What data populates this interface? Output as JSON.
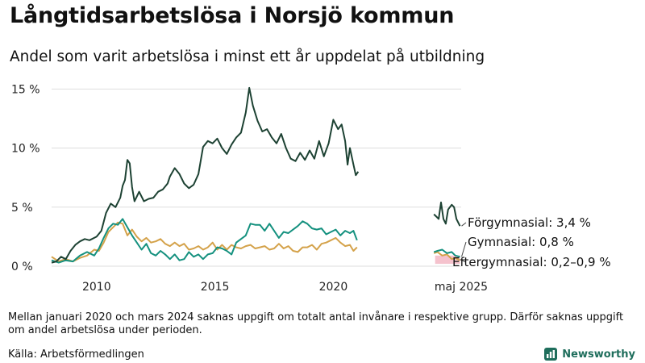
{
  "title": "Långtidsarbetslösa i Norsjö kommun",
  "subtitle": "Andel som varit arbetslösa i minst ett år uppdelat på utbildning",
  "footnote": "Mellan januari 2020 och mars 2024 saknas uppgift om totalt antal invånare i respektive grupp. Därför saknas uppgift om andel arbetslösa under perioden.",
  "source": "Källa: Arbetsförmedlingen",
  "brand": "Newsworthy",
  "colors": {
    "forgymnasial": "#1d4233",
    "gymnasial": "#15917f",
    "eftergymnasial": "#d4a24a",
    "eftergymnasial_band": "#f2b3c0"
  },
  "chart_data": {
    "type": "line",
    "y_ticks": [
      0,
      5,
      10,
      15
    ],
    "y_tick_labels": [
      "0 %",
      "5 %",
      "10 %",
      "15 %"
    ],
    "ylim": [
      0,
      15.5
    ],
    "x_tick_labels": [
      "2010",
      "2015",
      "2020",
      "maj 2025"
    ],
    "x_tick_positions": [
      2010,
      2015,
      2020,
      2025.4
    ],
    "xlim": [
      2008.1,
      2025.4
    ],
    "grid": true,
    "end_labels": [
      "Förgymnasial: 3,4 %",
      "Gymnasial: 0,8 %",
      "Eftergymnasial: 0,2–0,9 %"
    ],
    "series": [
      {
        "name": "Förgymnasial",
        "segments": [
          [
            [
              2008.1,
              0.3
            ],
            [
              2008.3,
              0.4
            ],
            [
              2008.5,
              0.8
            ],
            [
              2008.7,
              0.6
            ],
            [
              2008.9,
              1.3
            ],
            [
              2009.1,
              1.8
            ],
            [
              2009.3,
              2.1
            ],
            [
              2009.5,
              2.3
            ],
            [
              2009.7,
              2.2
            ],
            [
              2010.0,
              2.5
            ],
            [
              2010.2,
              3.0
            ],
            [
              2010.4,
              4.5
            ],
            [
              2010.6,
              5.3
            ],
            [
              2010.8,
              5.0
            ],
            [
              2011.0,
              5.8
            ],
            [
              2011.1,
              6.8
            ],
            [
              2011.2,
              7.3
            ],
            [
              2011.3,
              9.0
            ],
            [
              2011.4,
              8.7
            ],
            [
              2011.5,
              6.7
            ],
            [
              2011.6,
              5.5
            ],
            [
              2011.8,
              6.3
            ],
            [
              2012.0,
              5.5
            ],
            [
              2012.2,
              5.7
            ],
            [
              2012.4,
              5.8
            ],
            [
              2012.6,
              6.3
            ],
            [
              2012.8,
              6.5
            ],
            [
              2013.0,
              7.0
            ],
            [
              2013.1,
              7.6
            ],
            [
              2013.3,
              8.3
            ],
            [
              2013.5,
              7.8
            ],
            [
              2013.7,
              7.0
            ],
            [
              2013.9,
              6.6
            ],
            [
              2014.1,
              6.9
            ],
            [
              2014.3,
              7.8
            ],
            [
              2014.5,
              10.1
            ],
            [
              2014.7,
              10.6
            ],
            [
              2014.9,
              10.4
            ],
            [
              2015.1,
              10.8
            ],
            [
              2015.3,
              10.0
            ],
            [
              2015.5,
              9.5
            ],
            [
              2015.7,
              10.3
            ],
            [
              2015.9,
              10.9
            ],
            [
              2016.1,
              11.3
            ],
            [
              2016.3,
              13.0
            ],
            [
              2016.45,
              15.1
            ],
            [
              2016.6,
              13.6
            ],
            [
              2016.8,
              12.3
            ],
            [
              2017.0,
              11.4
            ],
            [
              2017.2,
              11.6
            ],
            [
              2017.4,
              10.9
            ],
            [
              2017.6,
              10.4
            ],
            [
              2017.8,
              11.2
            ],
            [
              2018.0,
              10.0
            ],
            [
              2018.2,
              9.1
            ],
            [
              2018.4,
              8.9
            ],
            [
              2018.6,
              9.6
            ],
            [
              2018.8,
              9.0
            ],
            [
              2019.0,
              9.8
            ],
            [
              2019.2,
              9.1
            ],
            [
              2019.4,
              10.6
            ],
            [
              2019.6,
              9.3
            ],
            [
              2019.8,
              10.4
            ],
            [
              2020.0,
              12.4
            ],
            [
              2020.2,
              11.6
            ],
            [
              2020.35,
              12.0
            ],
            [
              2020.5,
              10.6
            ],
            [
              2020.6,
              8.6
            ],
            [
              2020.7,
              10.0
            ],
            [
              2020.85,
              8.6
            ],
            [
              2020.95,
              7.7
            ],
            [
              2021.05,
              8.0
            ]
          ],
          [
            [
              2024.25,
              4.4
            ],
            [
              2024.35,
              4.2
            ],
            [
              2024.45,
              4.0
            ],
            [
              2024.55,
              5.4
            ],
            [
              2024.65,
              4.0
            ],
            [
              2024.75,
              3.6
            ],
            [
              2024.85,
              4.8
            ],
            [
              2025.0,
              5.2
            ],
            [
              2025.1,
              5.0
            ],
            [
              2025.2,
              4.0
            ],
            [
              2025.35,
              3.4
            ]
          ]
        ]
      },
      {
        "name": "Gymnasial",
        "segments": [
          [
            [
              2008.1,
              0.5
            ],
            [
              2008.4,
              0.3
            ],
            [
              2008.7,
              0.5
            ],
            [
              2009.0,
              0.4
            ],
            [
              2009.3,
              0.9
            ],
            [
              2009.6,
              1.2
            ],
            [
              2009.9,
              0.9
            ],
            [
              2010.1,
              1.5
            ],
            [
              2010.3,
              2.4
            ],
            [
              2010.5,
              3.2
            ],
            [
              2010.7,
              3.6
            ],
            [
              2010.9,
              3.5
            ],
            [
              2011.1,
              4.0
            ],
            [
              2011.3,
              3.3
            ],
            [
              2011.5,
              2.6
            ],
            [
              2011.7,
              2.0
            ],
            [
              2011.9,
              1.4
            ],
            [
              2012.1,
              1.9
            ],
            [
              2012.3,
              1.1
            ],
            [
              2012.5,
              0.9
            ],
            [
              2012.7,
              1.3
            ],
            [
              2012.9,
              1.0
            ],
            [
              2013.1,
              0.6
            ],
            [
              2013.3,
              1.0
            ],
            [
              2013.5,
              0.5
            ],
            [
              2013.7,
              0.6
            ],
            [
              2013.9,
              1.2
            ],
            [
              2014.1,
              0.8
            ],
            [
              2014.3,
              1.0
            ],
            [
              2014.5,
              0.6
            ],
            [
              2014.7,
              1.0
            ],
            [
              2014.9,
              1.1
            ],
            [
              2015.1,
              1.6
            ],
            [
              2015.3,
              1.5
            ],
            [
              2015.5,
              1.3
            ],
            [
              2015.7,
              1.0
            ],
            [
              2015.9,
              2.0
            ],
            [
              2016.1,
              2.3
            ],
            [
              2016.3,
              2.6
            ],
            [
              2016.5,
              3.6
            ],
            [
              2016.7,
              3.5
            ],
            [
              2016.9,
              3.5
            ],
            [
              2017.1,
              3.0
            ],
            [
              2017.3,
              3.6
            ],
            [
              2017.5,
              3.0
            ],
            [
              2017.7,
              2.4
            ],
            [
              2017.9,
              2.9
            ],
            [
              2018.1,
              2.8
            ],
            [
              2018.3,
              3.1
            ],
            [
              2018.5,
              3.4
            ],
            [
              2018.7,
              3.8
            ],
            [
              2018.9,
              3.6
            ],
            [
              2019.1,
              3.2
            ],
            [
              2019.3,
              3.1
            ],
            [
              2019.5,
              3.2
            ],
            [
              2019.7,
              2.7
            ],
            [
              2019.9,
              2.9
            ],
            [
              2020.1,
              3.1
            ],
            [
              2020.3,
              2.6
            ],
            [
              2020.5,
              3.0
            ],
            [
              2020.7,
              2.8
            ],
            [
              2020.85,
              3.0
            ],
            [
              2021.0,
              2.2
            ]
          ],
          [
            [
              2024.25,
              1.2
            ],
            [
              2024.4,
              1.3
            ],
            [
              2024.6,
              1.4
            ],
            [
              2024.8,
              1.1
            ],
            [
              2025.0,
              1.2
            ],
            [
              2025.15,
              0.9
            ],
            [
              2025.35,
              0.8
            ]
          ]
        ]
      },
      {
        "name": "Eftergymnasial",
        "segments": [
          [
            [
              2008.1,
              0.8
            ],
            [
              2008.4,
              0.4
            ],
            [
              2008.7,
              0.6
            ],
            [
              2009.0,
              0.4
            ],
            [
              2009.3,
              0.7
            ],
            [
              2009.6,
              0.9
            ],
            [
              2009.9,
              1.4
            ],
            [
              2010.1,
              1.3
            ],
            [
              2010.3,
              2.0
            ],
            [
              2010.5,
              2.9
            ],
            [
              2010.7,
              3.3
            ],
            [
              2010.9,
              3.7
            ],
            [
              2011.1,
              3.6
            ],
            [
              2011.3,
              2.6
            ],
            [
              2011.5,
              3.1
            ],
            [
              2011.7,
              2.5
            ],
            [
              2011.9,
              2.1
            ],
            [
              2012.1,
              2.4
            ],
            [
              2012.3,
              2.0
            ],
            [
              2012.5,
              2.1
            ],
            [
              2012.7,
              2.3
            ],
            [
              2012.9,
              1.9
            ],
            [
              2013.1,
              1.7
            ],
            [
              2013.3,
              2.0
            ],
            [
              2013.5,
              1.7
            ],
            [
              2013.7,
              1.9
            ],
            [
              2013.9,
              1.4
            ],
            [
              2014.1,
              1.5
            ],
            [
              2014.3,
              1.7
            ],
            [
              2014.5,
              1.4
            ],
            [
              2014.7,
              1.6
            ],
            [
              2014.9,
              2.0
            ],
            [
              2015.1,
              1.4
            ],
            [
              2015.3,
              1.8
            ],
            [
              2015.5,
              1.4
            ],
            [
              2015.7,
              1.8
            ],
            [
              2015.9,
              1.6
            ],
            [
              2016.1,
              1.5
            ],
            [
              2016.3,
              1.7
            ],
            [
              2016.5,
              1.8
            ],
            [
              2016.7,
              1.5
            ],
            [
              2016.9,
              1.6
            ],
            [
              2017.1,
              1.7
            ],
            [
              2017.3,
              1.4
            ],
            [
              2017.5,
              1.5
            ],
            [
              2017.7,
              1.9
            ],
            [
              2017.9,
              1.5
            ],
            [
              2018.1,
              1.7
            ],
            [
              2018.3,
              1.3
            ],
            [
              2018.5,
              1.2
            ],
            [
              2018.7,
              1.6
            ],
            [
              2018.9,
              1.6
            ],
            [
              2019.1,
              1.8
            ],
            [
              2019.3,
              1.4
            ],
            [
              2019.5,
              1.9
            ],
            [
              2019.7,
              2.0
            ],
            [
              2019.9,
              2.2
            ],
            [
              2020.1,
              2.4
            ],
            [
              2020.3,
              2.0
            ],
            [
              2020.5,
              1.7
            ],
            [
              2020.7,
              1.8
            ],
            [
              2020.85,
              1.3
            ],
            [
              2021.0,
              1.6
            ]
          ],
          [
            [
              2024.25,
              1.1
            ],
            [
              2024.4,
              1.2
            ],
            [
              2024.6,
              0.9
            ],
            [
              2024.8,
              1.0
            ],
            [
              2025.0,
              0.6
            ],
            [
              2025.15,
              0.7
            ],
            [
              2025.35,
              0.5
            ]
          ]
        ],
        "band": {
          "x": [
            2024.3,
            2025.35
          ],
          "low": 0.2,
          "high": 0.9
        }
      }
    ]
  }
}
